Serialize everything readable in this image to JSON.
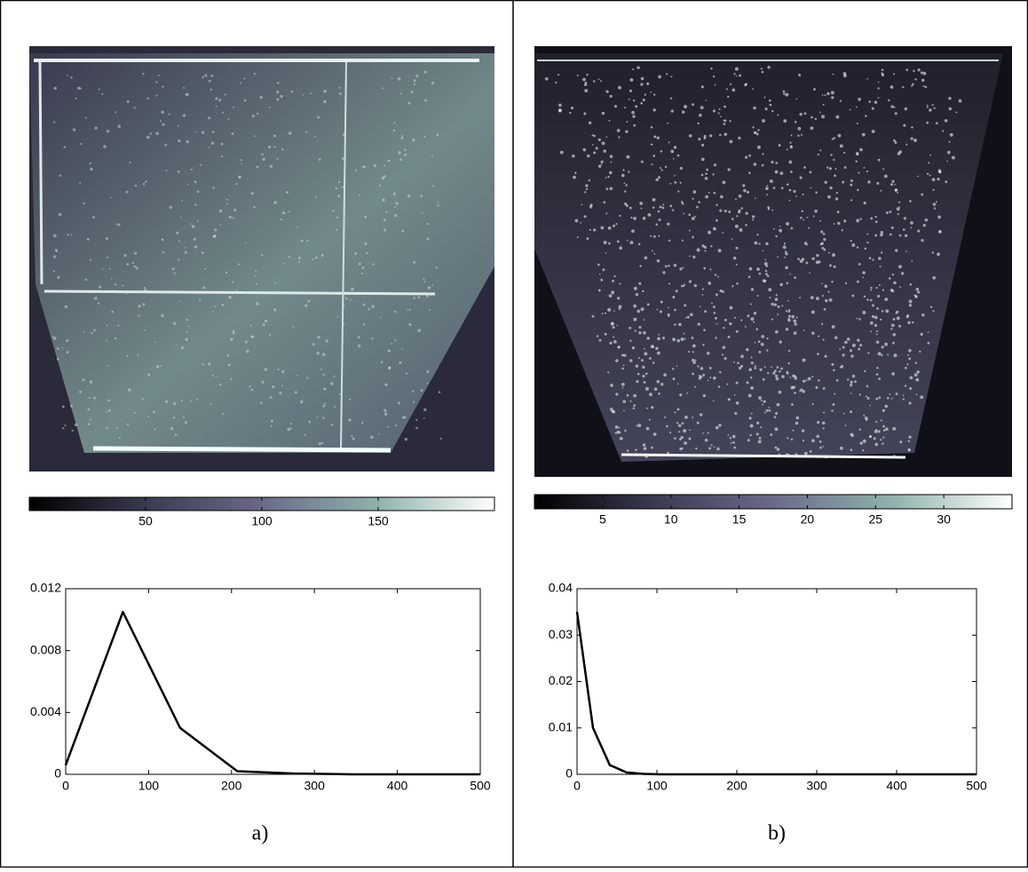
{
  "chart_data": [
    {
      "type": "colorbar",
      "xlim": [
        0,
        200
      ],
      "xticks": [
        50,
        100,
        150
      ],
      "colormap": [
        "#000000",
        "#3a3a50",
        "#6a6a88",
        "#8fb2ac",
        "#ffffff"
      ]
    },
    {
      "type": "line",
      "caption": "a)",
      "x": [
        0,
        69,
        138,
        207,
        276,
        345,
        414,
        483,
        500
      ],
      "values": [
        0.0006,
        0.0105,
        0.003,
        0.0002,
        5e-05,
        0,
        0,
        0,
        0
      ],
      "color": "#000000",
      "xlim": [
        0,
        500
      ],
      "xticks": [
        0,
        100,
        200,
        300,
        400,
        500
      ],
      "ylim": [
        0,
        0.012
      ],
      "yticks": [
        0,
        0.004,
        0.008,
        0.012
      ]
    },
    {
      "type": "colorbar",
      "xlim": [
        0,
        35
      ],
      "xticks": [
        5,
        10,
        15,
        20,
        25,
        30
      ],
      "colormap": [
        "#000000",
        "#3a3a50",
        "#6a6a88",
        "#8fb2ac",
        "#ffffff"
      ]
    },
    {
      "type": "line",
      "caption": "b)",
      "x": [
        0,
        20,
        41,
        62,
        83,
        104,
        500
      ],
      "values": [
        0.035,
        0.01,
        0.002,
        0.0004,
        0.0001,
        0,
        0
      ],
      "color": "#000000",
      "xlim": [
        0,
        500
      ],
      "xticks": [
        0,
        100,
        200,
        300,
        400,
        500
      ],
      "ylim": [
        0,
        0.04
      ],
      "yticks": [
        0,
        0.01,
        0.02,
        0.03,
        0.04
      ]
    }
  ]
}
